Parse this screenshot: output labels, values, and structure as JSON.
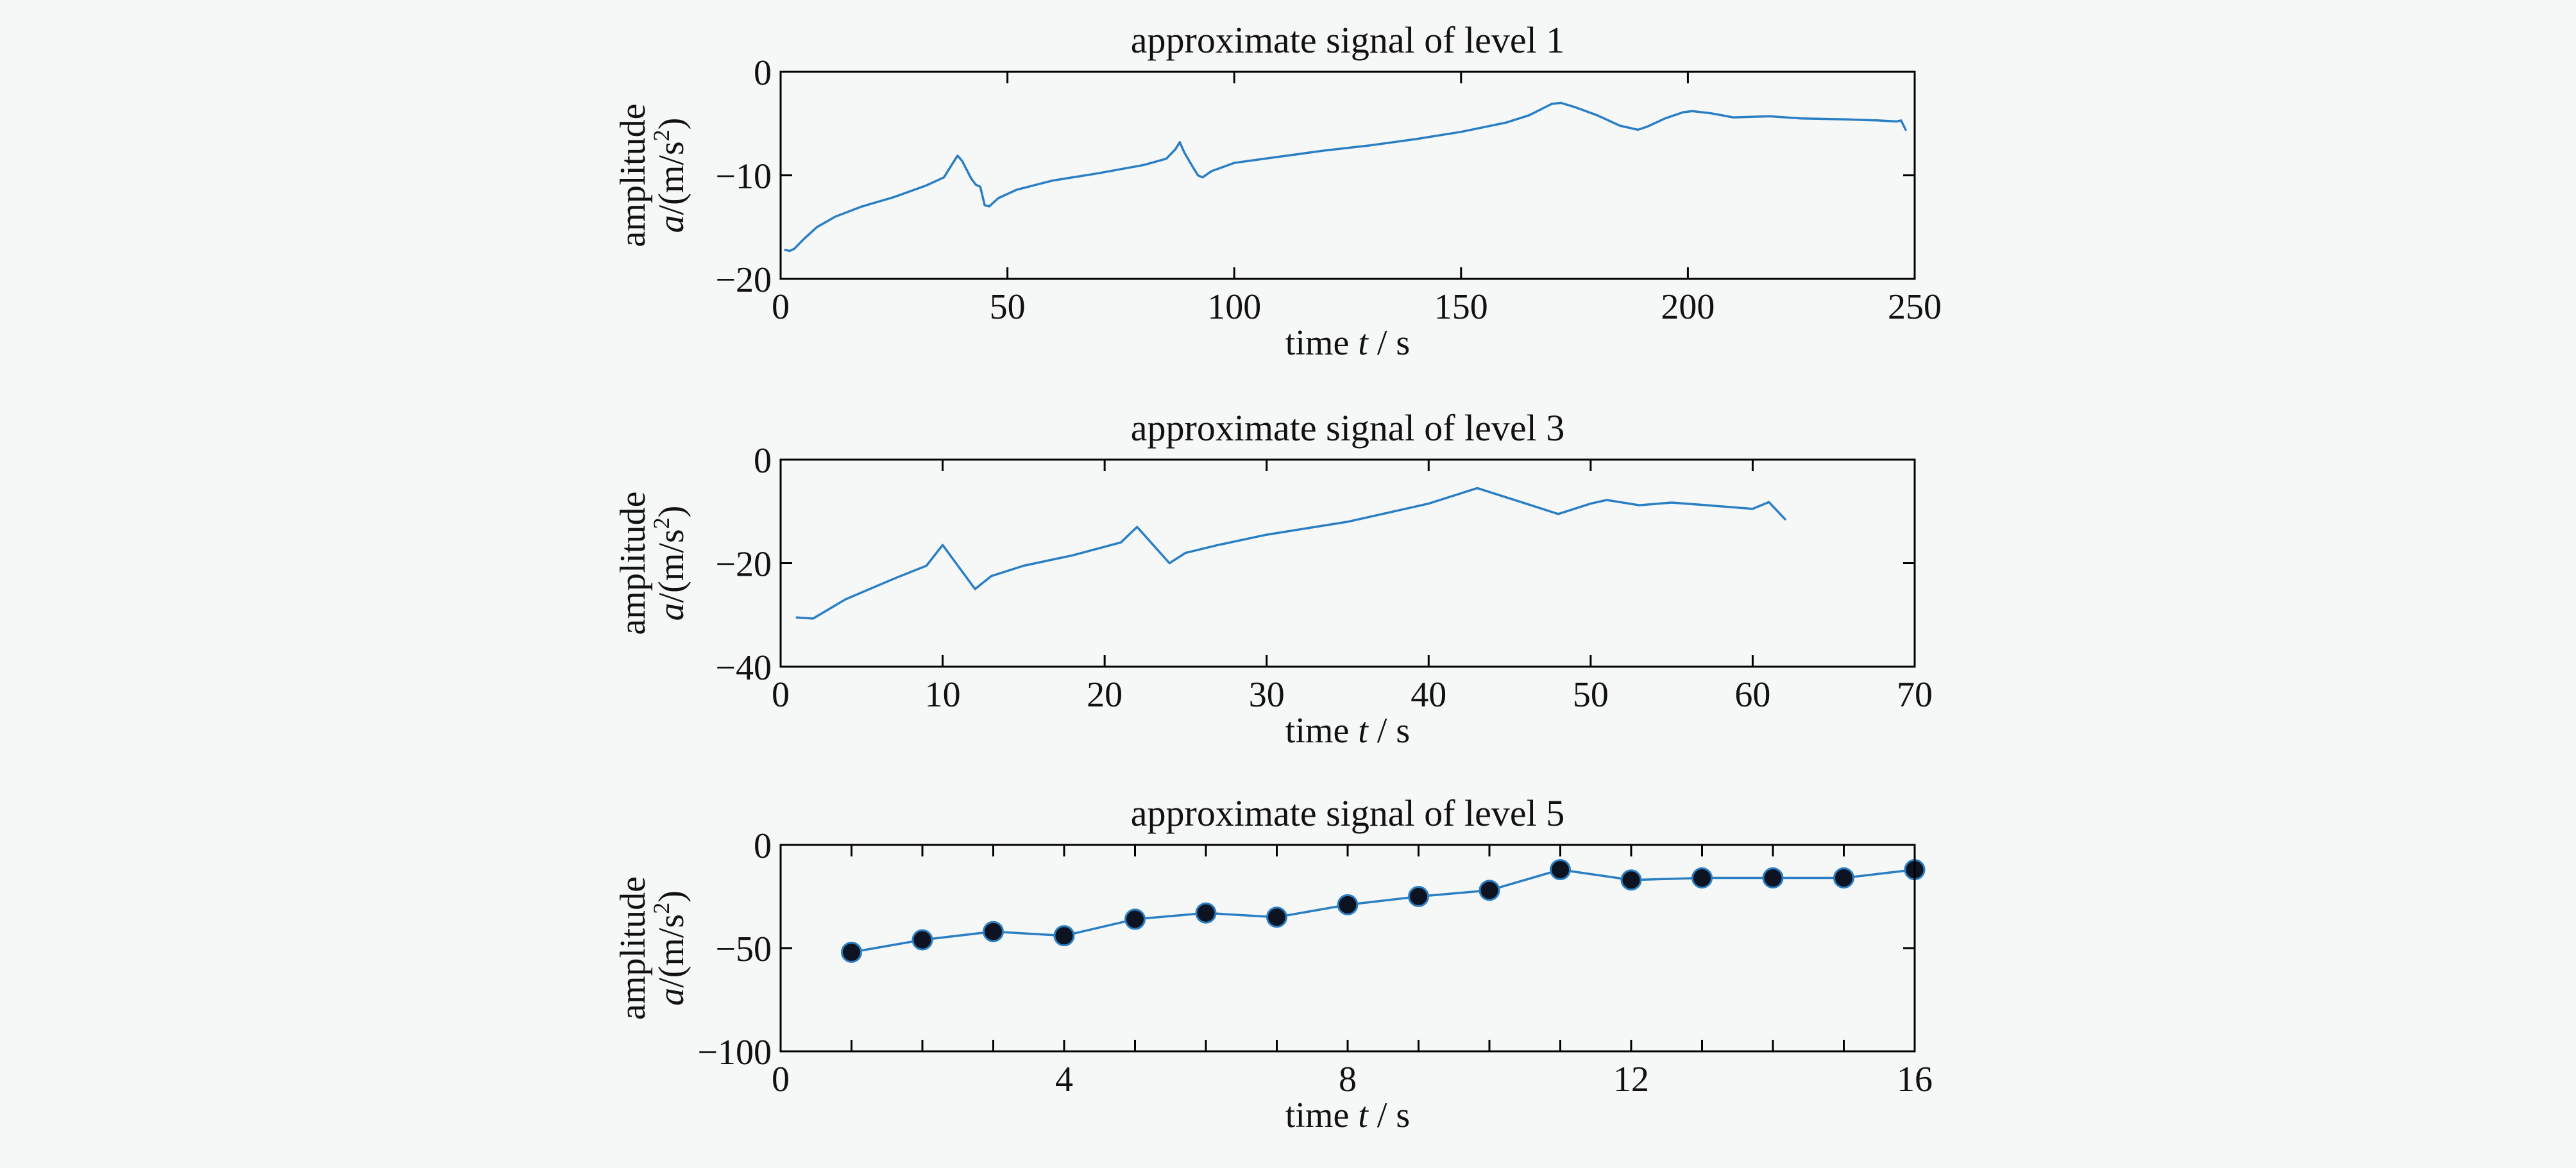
{
  "colors": {
    "series": "#2a7fc4",
    "marker_fill": "#0d1321",
    "marker_stroke": "#2a7fc4",
    "background": "#f6f7f7"
  },
  "chart_data": [
    {
      "type": "line",
      "title": "approximate signal of level 1",
      "xlabel": {
        "prefix": "time ",
        "var": "t",
        "suffix": " / s"
      },
      "ylabel": {
        "line1": "amplitude",
        "var": "a",
        "unit_a": "/(m/s",
        "unit_sup": "2",
        "unit_b": ")"
      },
      "xlim": [
        0,
        250
      ],
      "ylim": [
        -20,
        0
      ],
      "xticks": [
        0,
        50,
        100,
        150,
        200,
        250
      ],
      "yticks": [
        0,
        -10,
        -20
      ],
      "xtick_labels": [
        "0",
        "50",
        "100",
        "150",
        "200",
        "250"
      ],
      "ytick_labels": [
        "0",
        "−10",
        "−20"
      ],
      "markers": false,
      "grid": false,
      "series": [
        {
          "x": [
            1,
            2,
            3,
            5,
            8,
            12,
            18,
            25,
            32,
            36,
            38,
            39,
            40,
            42,
            43,
            44,
            45,
            46,
            48,
            52,
            60,
            70,
            80,
            85,
            87,
            88,
            89,
            91,
            92,
            93,
            95,
            100,
            110,
            120,
            130,
            140,
            150,
            160,
            165,
            170,
            172,
            175,
            180,
            185,
            189,
            191,
            195,
            199,
            201,
            205,
            210,
            218,
            225,
            235,
            242,
            246,
            247,
            248
          ],
          "y": [
            -17.2,
            -17.3,
            -17.1,
            -16.2,
            -15.0,
            -14.0,
            -13.0,
            -12.1,
            -11.0,
            -10.2,
            -8.8,
            -8.1,
            -8.6,
            -10.3,
            -10.9,
            -11.1,
            -12.9,
            -13.0,
            -12.2,
            -11.4,
            -10.5,
            -9.8,
            -9.0,
            -8.4,
            -7.5,
            -6.8,
            -7.8,
            -9.3,
            -10.0,
            -10.2,
            -9.6,
            -8.8,
            -8.2,
            -7.6,
            -7.1,
            -6.5,
            -5.8,
            -4.9,
            -4.2,
            -3.1,
            -3.0,
            -3.4,
            -4.2,
            -5.2,
            -5.6,
            -5.3,
            -4.5,
            -3.9,
            -3.8,
            -4.0,
            -4.4,
            -4.3,
            -4.5,
            -4.6,
            -4.7,
            -4.8,
            -4.7,
            -5.6
          ]
        }
      ]
    },
    {
      "type": "line",
      "title": "approximate signal of level 3",
      "xlabel": {
        "prefix": "time ",
        "var": "t",
        "suffix": " / s"
      },
      "ylabel": {
        "line1": "amplitude",
        "var": "a",
        "unit_a": "/(m/s",
        "unit_sup": "2",
        "unit_b": ")"
      },
      "xlim": [
        0,
        70
      ],
      "ylim": [
        -40,
        0
      ],
      "xticks": [
        0,
        10,
        20,
        30,
        40,
        50,
        60,
        70
      ],
      "yticks": [
        0,
        -20,
        -40
      ],
      "xtick_labels": [
        "0",
        "10",
        "20",
        "30",
        "40",
        "50",
        "60",
        "70"
      ],
      "ytick_labels": [
        "0",
        "−20",
        "−40"
      ],
      "markers": false,
      "grid": false,
      "series": [
        {
          "x": [
            1,
            2,
            4,
            7,
            9,
            10,
            12,
            13,
            15,
            18,
            21,
            22,
            23,
            24,
            25,
            27,
            30,
            35,
            40,
            43,
            46,
            48,
            50,
            51,
            53,
            55,
            58,
            60,
            61,
            62
          ],
          "y": [
            -30.5,
            -30.7,
            -27,
            -23,
            -20.5,
            -16.5,
            -25,
            -22.5,
            -20.5,
            -18.5,
            -16,
            -13,
            -16.5,
            -20,
            -18,
            -16.5,
            -14.5,
            -12,
            -8.5,
            -5.5,
            -8.5,
            -10.5,
            -8.5,
            -7.8,
            -8.8,
            -8.3,
            -9,
            -9.5,
            -8.2,
            -11.5
          ]
        }
      ]
    },
    {
      "type": "line",
      "title": "approximate signal of level 5",
      "xlabel": {
        "prefix": "time ",
        "var": "t",
        "suffix": " / s"
      },
      "ylabel": {
        "line1": "amplitude",
        "var": "a",
        "unit_a": "/(m/s",
        "unit_sup": "2",
        "unit_b": ")"
      },
      "xlim": [
        0,
        16
      ],
      "ylim": [
        -100,
        0
      ],
      "xticks": [
        0,
        4,
        8,
        12,
        16
      ],
      "minor_xticks": [
        1,
        2,
        3,
        5,
        6,
        7,
        9,
        10,
        11,
        13,
        14,
        15
      ],
      "yticks": [
        0,
        -50,
        -100
      ],
      "xtick_labels": [
        "0",
        "4",
        "8",
        "12",
        "16"
      ],
      "ytick_labels": [
        "0",
        "−50",
        "−100"
      ],
      "markers": true,
      "grid": false,
      "series": [
        {
          "x": [
            1,
            2,
            3,
            4,
            5,
            6,
            7,
            8,
            9,
            10,
            11,
            12,
            13,
            14,
            15,
            16
          ],
          "y": [
            -52,
            -46,
            -42,
            -44,
            -36,
            -33,
            -35,
            -29,
            -25,
            -22,
            -12,
            -17,
            -16,
            -16,
            -16,
            -12
          ]
        }
      ]
    }
  ]
}
